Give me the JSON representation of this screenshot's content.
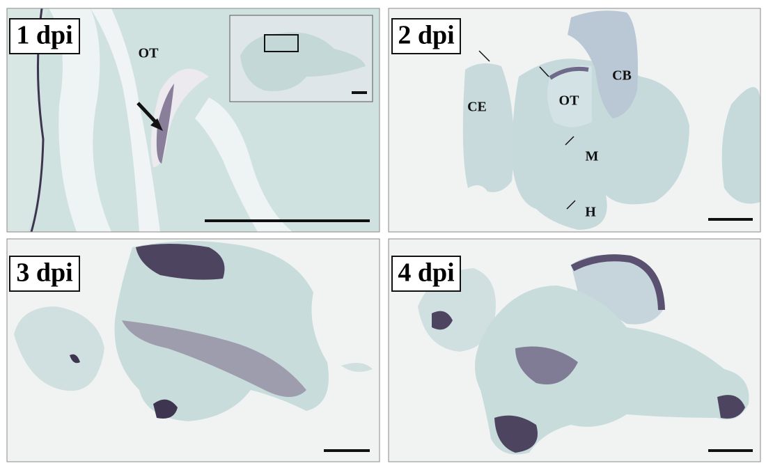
{
  "panels": [
    {
      "label": "1 dpi",
      "annotations": [
        "OT"
      ]
    },
    {
      "label": "2 dpi",
      "annotations": [
        "CE",
        "OT",
        "CB",
        "M",
        "H"
      ]
    },
    {
      "label": "3 dpi",
      "annotations": []
    },
    {
      "label": "4 dpi",
      "annotations": []
    }
  ]
}
